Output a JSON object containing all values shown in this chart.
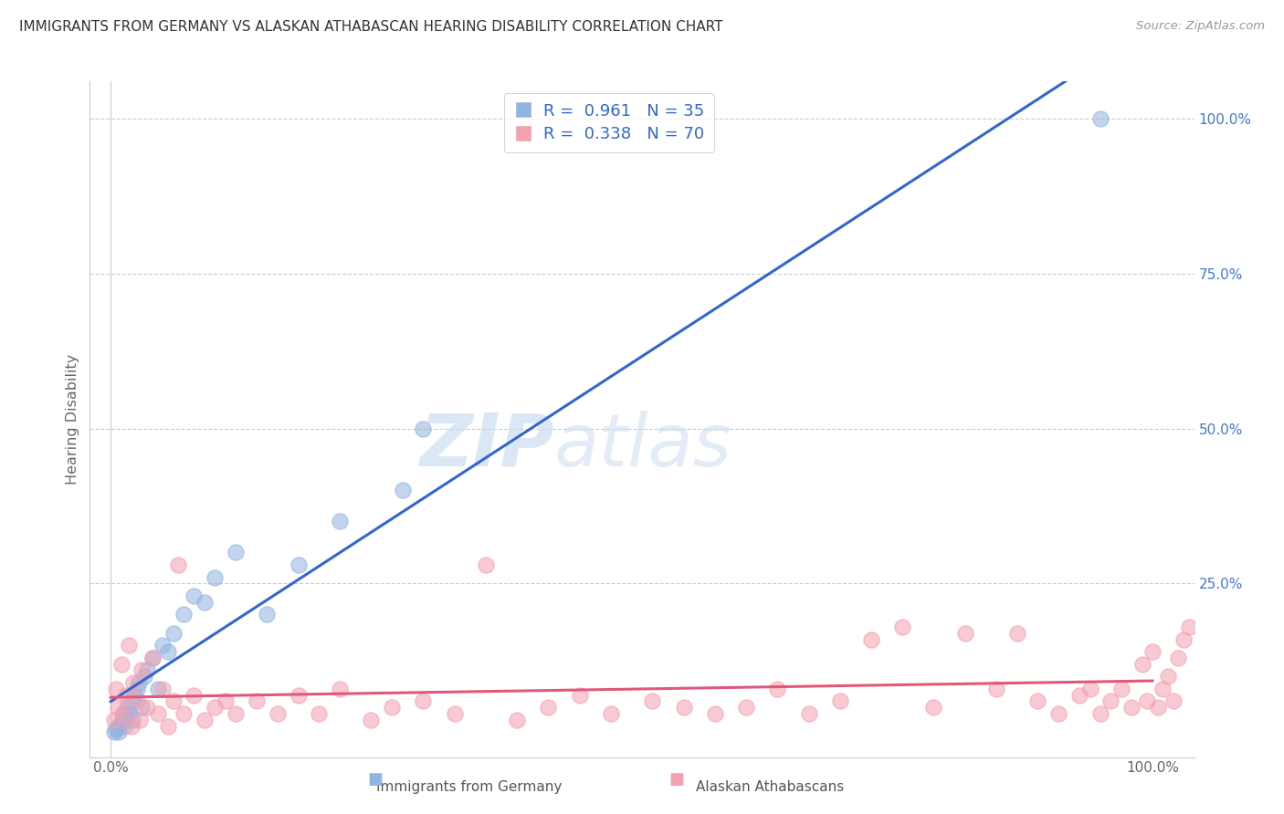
{
  "title": "IMMIGRANTS FROM GERMANY VS ALASKAN ATHABASCAN HEARING DISABILITY CORRELATION CHART",
  "source": "Source: ZipAtlas.com",
  "ylabel": "Hearing Disability",
  "blue_R": "0.961",
  "blue_N": "35",
  "pink_R": "0.338",
  "pink_N": "70",
  "blue_color": "#92b4e0",
  "pink_color": "#f4a0b0",
  "blue_line_color": "#3366CC",
  "pink_line_color": "#e05878",
  "legend_label_blue": "Immigrants from Germany",
  "legend_label_pink": "Alaskan Athabascans",
  "watermark_zip": "ZIP",
  "watermark_atlas": "atlas",
  "blue_scatter_x": [
    0.3,
    0.5,
    0.7,
    0.8,
    1.0,
    1.1,
    1.2,
    1.3,
    1.5,
    1.6,
    1.8,
    2.0,
    2.1,
    2.3,
    2.5,
    2.7,
    3.0,
    3.2,
    3.5,
    4.0,
    4.5,
    5.0,
    5.5,
    6.0,
    7.0,
    8.0,
    9.0,
    10.0,
    12.0,
    15.0,
    18.0,
    22.0,
    28.0,
    30.0,
    95.0
  ],
  "blue_scatter_y": [
    1.0,
    1.5,
    2.0,
    1.0,
    2.5,
    3.0,
    4.0,
    2.0,
    3.5,
    5.0,
    4.0,
    6.0,
    3.0,
    7.0,
    8.0,
    9.0,
    5.0,
    10.0,
    11.0,
    13.0,
    8.0,
    15.0,
    14.0,
    17.0,
    20.0,
    23.0,
    22.0,
    26.0,
    30.0,
    20.0,
    28.0,
    35.0,
    40.0,
    50.0,
    100.0
  ],
  "pink_scatter_x": [
    0.3,
    0.5,
    0.7,
    1.0,
    1.2,
    1.5,
    1.7,
    2.0,
    2.2,
    2.5,
    2.8,
    3.0,
    3.5,
    4.0,
    4.5,
    5.0,
    5.5,
    6.0,
    6.5,
    7.0,
    8.0,
    9.0,
    10.0,
    11.0,
    12.0,
    14.0,
    16.0,
    18.0,
    20.0,
    22.0,
    25.0,
    27.0,
    30.0,
    33.0,
    36.0,
    39.0,
    42.0,
    45.0,
    48.0,
    52.0,
    55.0,
    58.0,
    61.0,
    64.0,
    67.0,
    70.0,
    73.0,
    76.0,
    79.0,
    82.0,
    85.0,
    87.0,
    89.0,
    91.0,
    93.0,
    94.0,
    95.0,
    96.0,
    97.0,
    98.0,
    99.0,
    99.5,
    100.0,
    100.5,
    101.0,
    101.5,
    102.0,
    102.5,
    103.0,
    103.5
  ],
  "pink_scatter_y": [
    3.0,
    8.0,
    5.0,
    12.0,
    4.0,
    7.0,
    15.0,
    2.0,
    9.0,
    6.0,
    3.0,
    11.0,
    5.0,
    13.0,
    4.0,
    8.0,
    2.0,
    6.0,
    28.0,
    4.0,
    7.0,
    3.0,
    5.0,
    6.0,
    4.0,
    6.0,
    4.0,
    7.0,
    4.0,
    8.0,
    3.0,
    5.0,
    6.0,
    4.0,
    28.0,
    3.0,
    5.0,
    7.0,
    4.0,
    6.0,
    5.0,
    4.0,
    5.0,
    8.0,
    4.0,
    6.0,
    16.0,
    18.0,
    5.0,
    17.0,
    8.0,
    17.0,
    6.0,
    4.0,
    7.0,
    8.0,
    4.0,
    6.0,
    8.0,
    5.0,
    12.0,
    6.0,
    14.0,
    5.0,
    8.0,
    10.0,
    6.0,
    13.0,
    16.0,
    18.0
  ]
}
